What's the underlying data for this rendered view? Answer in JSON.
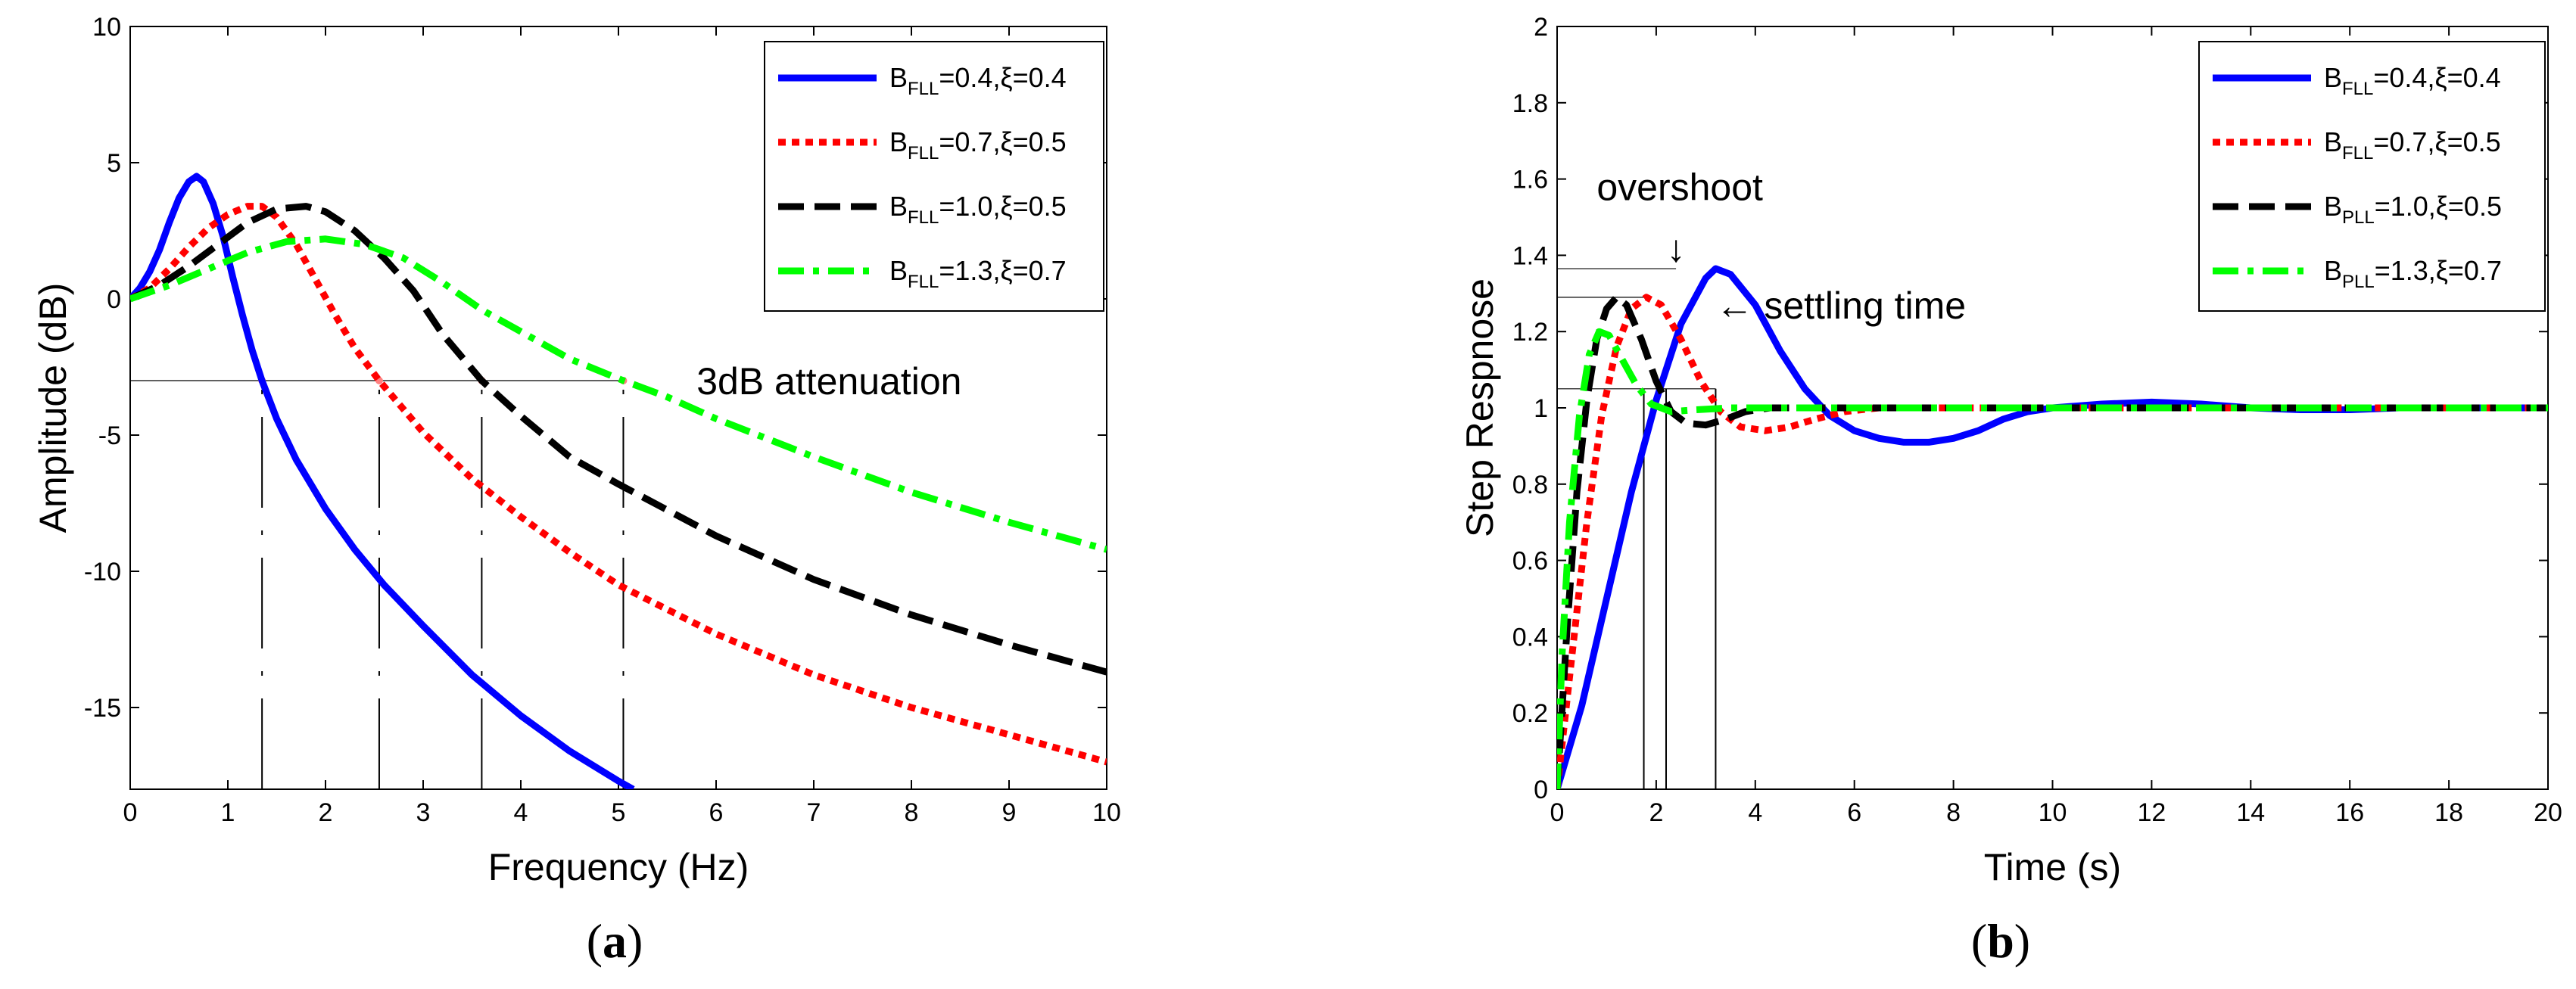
{
  "colors": {
    "blue": "#0000ff",
    "red": "#ff0000",
    "black": "#000000",
    "green": "#00ff00"
  },
  "captions": {
    "a_open": "(",
    "a_letter": "a",
    "a_close": ")",
    "b_open": "(",
    "b_letter": "b",
    "b_close": ")"
  },
  "chart_data": [
    {
      "id": "a",
      "type": "line",
      "xlabel": "Frequency (Hz)",
      "ylabel": "Amplitude (dB)",
      "xlim": [
        0,
        10
      ],
      "ylim": [
        -18,
        10
      ],
      "xticks": [
        0,
        1,
        2,
        3,
        4,
        5,
        6,
        7,
        8,
        9,
        10
      ],
      "yticks": [
        10,
        5,
        0,
        -5,
        -10,
        -15
      ],
      "ytick_labels": [
        "10",
        "5",
        "0",
        "-5",
        "-10",
        "-15"
      ],
      "legend_position": "top-right",
      "annotations": [
        {
          "text": "3dB attenuation",
          "x": 5.8,
          "y": -3.0
        }
      ],
      "reference_lines": {
        "hline_y": -3,
        "hline_x_range": [
          0,
          5.0
        ],
        "vlines": [
          1.35,
          2.55,
          3.6,
          5.05
        ],
        "vline_y_range": [
          -18,
          -3
        ]
      },
      "series": [
        {
          "legend": {
            "base": "B",
            "sub": "FLL",
            "rest": "=0.4,ξ=0.4"
          },
          "color": "blue",
          "dash": "solid",
          "points": [
            [
              0,
              0
            ],
            [
              0.1,
              0.4
            ],
            [
              0.2,
              1.0
            ],
            [
              0.3,
              1.8
            ],
            [
              0.4,
              2.8
            ],
            [
              0.5,
              3.7
            ],
            [
              0.6,
              4.3
            ],
            [
              0.68,
              4.5
            ],
            [
              0.75,
              4.3
            ],
            [
              0.85,
              3.5
            ],
            [
              0.95,
              2.3
            ],
            [
              1.05,
              0.8
            ],
            [
              1.15,
              -0.6
            ],
            [
              1.25,
              -1.9
            ],
            [
              1.35,
              -3.0
            ],
            [
              1.5,
              -4.4
            ],
            [
              1.7,
              -5.9
            ],
            [
              2.0,
              -7.7
            ],
            [
              2.3,
              -9.2
            ],
            [
              2.6,
              -10.5
            ],
            [
              3.0,
              -12.0
            ],
            [
              3.5,
              -13.8
            ],
            [
              4.0,
              -15.3
            ],
            [
              4.5,
              -16.6
            ],
            [
              5.0,
              -17.7
            ],
            [
              5.15,
              -18.0
            ]
          ]
        },
        {
          "legend": {
            "base": "B",
            "sub": "FLL",
            "rest": "=0.7,ξ=0.5"
          },
          "color": "red",
          "dash": "dot",
          "points": [
            [
              0,
              0
            ],
            [
              0.2,
              0.4
            ],
            [
              0.4,
              1.1
            ],
            [
              0.6,
              1.9
            ],
            [
              0.8,
              2.6
            ],
            [
              1.0,
              3.1
            ],
            [
              1.2,
              3.4
            ],
            [
              1.35,
              3.4
            ],
            [
              1.5,
              3.0
            ],
            [
              1.7,
              2.0
            ],
            [
              1.9,
              0.7
            ],
            [
              2.1,
              -0.6
            ],
            [
              2.3,
              -1.8
            ],
            [
              2.55,
              -3.0
            ],
            [
              3.0,
              -4.9
            ],
            [
              3.5,
              -6.6
            ],
            [
              4.0,
              -8.0
            ],
            [
              4.5,
              -9.3
            ],
            [
              5.0,
              -10.5
            ],
            [
              6.0,
              -12.3
            ],
            [
              7.0,
              -13.8
            ],
            [
              8.0,
              -15.0
            ],
            [
              9.0,
              -16.0
            ],
            [
              10.0,
              -17.0
            ]
          ]
        },
        {
          "legend": {
            "base": "B",
            "sub": "FLL",
            "rest": "=1.0,ξ=0.5"
          },
          "color": "black",
          "dash": "dash",
          "points": [
            [
              0,
              0
            ],
            [
              0.3,
              0.5
            ],
            [
              0.6,
              1.2
            ],
            [
              0.9,
              2.0
            ],
            [
              1.2,
              2.8
            ],
            [
              1.5,
              3.3
            ],
            [
              1.8,
              3.4
            ],
            [
              2.0,
              3.2
            ],
            [
              2.3,
              2.5
            ],
            [
              2.6,
              1.5
            ],
            [
              2.9,
              0.3
            ],
            [
              3.2,
              -1.3
            ],
            [
              3.6,
              -3.0
            ],
            [
              4.0,
              -4.3
            ],
            [
              4.5,
              -5.8
            ],
            [
              5.0,
              -6.8
            ],
            [
              6.0,
              -8.7
            ],
            [
              7.0,
              -10.3
            ],
            [
              8.0,
              -11.6
            ],
            [
              9.0,
              -12.7
            ],
            [
              10.0,
              -13.7
            ]
          ]
        },
        {
          "legend": {
            "base": "B",
            "sub": "FLL",
            "rest": "=1.3,ξ=0.7"
          },
          "color": "green",
          "dash": "dashdot",
          "points": [
            [
              0,
              0
            ],
            [
              0.4,
              0.5
            ],
            [
              0.8,
              1.1
            ],
            [
              1.2,
              1.7
            ],
            [
              1.6,
              2.1
            ],
            [
              2.0,
              2.2
            ],
            [
              2.4,
              2.0
            ],
            [
              2.8,
              1.5
            ],
            [
              3.2,
              0.6
            ],
            [
              3.6,
              -0.4
            ],
            [
              4.0,
              -1.2
            ],
            [
              4.5,
              -2.2
            ],
            [
              5.05,
              -3.0
            ],
            [
              5.5,
              -3.6
            ],
            [
              6.0,
              -4.4
            ],
            [
              7.0,
              -5.8
            ],
            [
              8.0,
              -7.1
            ],
            [
              9.0,
              -8.2
            ],
            [
              10.0,
              -9.2
            ]
          ]
        }
      ]
    },
    {
      "id": "b",
      "type": "line",
      "xlabel": "Time (s)",
      "ylabel": "Step Respnose",
      "xlim": [
        0,
        20
      ],
      "ylim": [
        0,
        2
      ],
      "xticks": [
        0,
        2,
        4,
        6,
        8,
        10,
        12,
        14,
        16,
        18,
        20
      ],
      "yticks": [
        0,
        0.2,
        0.4,
        0.6,
        0.8,
        1,
        1.2,
        1.4,
        1.6,
        1.8,
        2
      ],
      "ytick_labels": [
        "0",
        "0.2",
        "0.4",
        "0.6",
        "0.8",
        "1",
        "1.2",
        "1.4",
        "1.6",
        "1.8",
        "2"
      ],
      "legend_position": "top-right",
      "annotations": [
        {
          "text": "overshoot",
          "x": 0.8,
          "y": 1.58
        },
        {
          "arrow": "↓",
          "x": 2.4,
          "y": 1.42
        },
        {
          "text": "← settling time",
          "x": 3.2,
          "y": 1.27
        }
      ],
      "reference_lines": {
        "hlines": [
          {
            "y": 1.365,
            "x_range": [
              0,
              2.4
            ]
          },
          {
            "y": 1.29,
            "x_range": [
              0,
              1.9
            ]
          },
          {
            "y": 1.05,
            "x_range": [
              0,
              3.2
            ]
          }
        ],
        "vlines": [
          1.75,
          2.2,
          3.2
        ],
        "vline_y_range": [
          0,
          1.05
        ]
      },
      "series": [
        {
          "legend": {
            "base": "B",
            "sub": "FLL",
            "rest": "=0.4,ξ=0.4"
          },
          "color": "blue",
          "dash": "solid",
          "points": [
            [
              0,
              0
            ],
            [
              0.5,
              0.22
            ],
            [
              1.0,
              0.5
            ],
            [
              1.5,
              0.78
            ],
            [
              2.0,
              1.02
            ],
            [
              2.5,
              1.22
            ],
            [
              3.0,
              1.34
            ],
            [
              3.2,
              1.365
            ],
            [
              3.5,
              1.35
            ],
            [
              4.0,
              1.27
            ],
            [
              4.5,
              1.15
            ],
            [
              5.0,
              1.05
            ],
            [
              5.5,
              0.98
            ],
            [
              6.0,
              0.94
            ],
            [
              6.5,
              0.92
            ],
            [
              7.0,
              0.91
            ],
            [
              7.5,
              0.91
            ],
            [
              8.0,
              0.92
            ],
            [
              8.5,
              0.94
            ],
            [
              9.0,
              0.97
            ],
            [
              9.5,
              0.99
            ],
            [
              10.0,
              1.0
            ],
            [
              11.0,
              1.01
            ],
            [
              12.0,
              1.015
            ],
            [
              13.0,
              1.01
            ],
            [
              14.0,
              1.0
            ],
            [
              15.0,
              0.995
            ],
            [
              16.0,
              0.995
            ],
            [
              17.0,
              1.0
            ],
            [
              18.0,
              1.0
            ],
            [
              19.0,
              1.0
            ],
            [
              20.0,
              1.0
            ]
          ]
        },
        {
          "legend": {
            "base": "B",
            "sub": "FLL",
            "rest": "=0.7,ξ=0.5"
          },
          "color": "red",
          "dash": "dot",
          "points": [
            [
              0,
              0
            ],
            [
              0.3,
              0.35
            ],
            [
              0.6,
              0.7
            ],
            [
              0.9,
              0.98
            ],
            [
              1.2,
              1.16
            ],
            [
              1.5,
              1.26
            ],
            [
              1.8,
              1.29
            ],
            [
              2.1,
              1.27
            ],
            [
              2.5,
              1.18
            ],
            [
              2.9,
              1.07
            ],
            [
              3.3,
              0.99
            ],
            [
              3.7,
              0.95
            ],
            [
              4.2,
              0.94
            ],
            [
              4.7,
              0.95
            ],
            [
              5.2,
              0.97
            ],
            [
              5.8,
              0.99
            ],
            [
              6.5,
              1.0
            ],
            [
              8.0,
              1.0
            ],
            [
              12.0,
              1.0
            ],
            [
              20.0,
              1.0
            ]
          ]
        },
        {
          "legend": {
            "base": "B",
            "sub": "PLL",
            "rest": "=1.0,ξ=0.5"
          },
          "color": "black",
          "dash": "dash",
          "points": [
            [
              0,
              0
            ],
            [
              0.2,
              0.42
            ],
            [
              0.4,
              0.78
            ],
            [
              0.6,
              1.02
            ],
            [
              0.8,
              1.18
            ],
            [
              1.0,
              1.26
            ],
            [
              1.2,
              1.29
            ],
            [
              1.4,
              1.27
            ],
            [
              1.7,
              1.18
            ],
            [
              2.0,
              1.07
            ],
            [
              2.3,
              0.99
            ],
            [
              2.6,
              0.96
            ],
            [
              3.0,
              0.955
            ],
            [
              3.4,
              0.97
            ],
            [
              3.8,
              0.99
            ],
            [
              4.3,
              1.0
            ],
            [
              6.0,
              1.0
            ],
            [
              20.0,
              1.0
            ]
          ]
        },
        {
          "legend": {
            "base": "B",
            "sub": "PLL",
            "rest": "=1.3,ξ=0.7"
          },
          "color": "green",
          "dash": "dashdot",
          "points": [
            [
              0,
              0
            ],
            [
              0.1,
              0.35
            ],
            [
              0.25,
              0.7
            ],
            [
              0.45,
              0.98
            ],
            [
              0.65,
              1.14
            ],
            [
              0.85,
              1.2
            ],
            [
              1.05,
              1.19
            ],
            [
              1.3,
              1.13
            ],
            [
              1.6,
              1.06
            ],
            [
              1.9,
              1.01
            ],
            [
              2.3,
              0.99
            ],
            [
              2.8,
              0.995
            ],
            [
              3.5,
              1.0
            ],
            [
              6.0,
              1.0
            ],
            [
              20.0,
              1.0
            ]
          ]
        }
      ]
    }
  ]
}
